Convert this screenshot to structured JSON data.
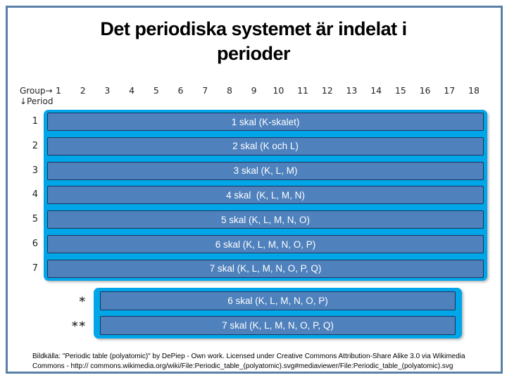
{
  "title": {
    "line1": "Det periodiska systemet är indelat i",
    "line2": "perioder"
  },
  "axis": {
    "group_label": "Group→",
    "period_label": "↓Period",
    "group_numbers": [
      "1",
      "2",
      "3",
      "4",
      "5",
      "6",
      "7",
      "8",
      "9",
      "10",
      "11",
      "12",
      "13",
      "14",
      "15",
      "16",
      "17",
      "18"
    ]
  },
  "periods": [
    {
      "num": "1",
      "label": "1 skal (K-skalet)"
    },
    {
      "num": "2",
      "label": "2 skal (K och L)"
    },
    {
      "num": "3",
      "label": "3 skal (K, L, M)"
    },
    {
      "num": "4",
      "label": "4 skal  (K, L, M, N)"
    },
    {
      "num": "5",
      "label": "5 skal (K, L, M, N, O)"
    },
    {
      "num": "6",
      "label": "6 skal (K, L, M, N, O, P)"
    },
    {
      "num": "7",
      "label": "7 skal (K, L, M, N, O, P, Q)"
    }
  ],
  "footnotes": [
    {
      "marker": "*",
      "label": "6 skal (K, L, M, N, O, P)"
    },
    {
      "marker": "**",
      "label": "7 skal (K, L, M, N, O, P, Q)"
    }
  ],
  "attribution": {
    "line1": "Bildkälla: \"Periodic table (polyatomic)\" by DePiep - Own work. Licensed under Creative Commons Attribution-Share Alike 3.0 via Wikimedia",
    "line2": "Commons - http:// commons.wikimedia.org/wiki/File:Periodic_table_(polyatomic).svg#mediaviewer/File:Periodic_table_(polyatomic).svg"
  },
  "colors": {
    "bar_fill": "#4f81bd",
    "bar_border": "#17365d",
    "frame_cyan": "#00a6e8",
    "slide_border": "#5b80a7"
  }
}
